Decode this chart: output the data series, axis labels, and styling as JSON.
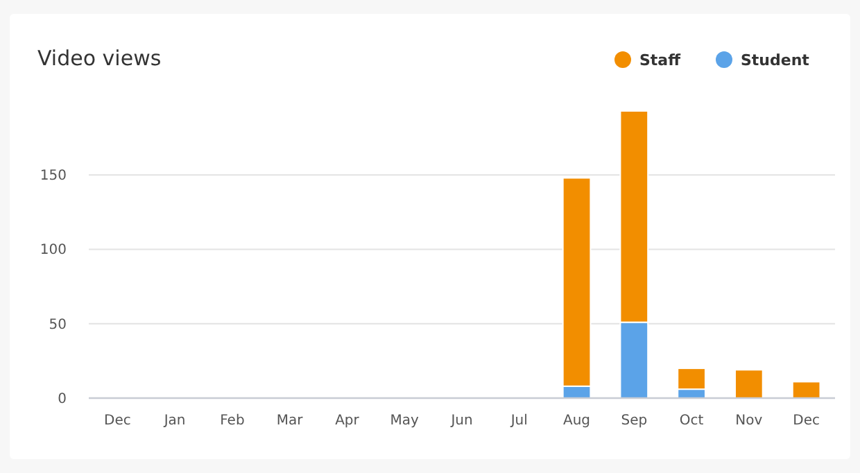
{
  "chart_data": {
    "type": "bar",
    "title": "Video views",
    "categories": [
      "Dec",
      "Jan",
      "Feb",
      "Mar",
      "Apr",
      "May",
      "Jun",
      "Jul",
      "Aug",
      "Sep",
      "Oct",
      "Nov",
      "Dec"
    ],
    "stacked": true,
    "series": [
      {
        "name": "Student",
        "color": "#5ba3e8",
        "values": [
          0,
          0,
          0,
          0,
          0,
          0,
          0,
          0,
          8,
          51,
          6,
          0,
          0
        ]
      },
      {
        "name": "Staff",
        "color": "#f28e00",
        "values": [
          0,
          0,
          0,
          0,
          0,
          0,
          0,
          0,
          140,
          142,
          14,
          19,
          11
        ]
      }
    ],
    "ylim": [
      0,
      193
    ],
    "yticks": [
      0,
      50,
      100,
      150
    ],
    "grid": "y",
    "legend": "top right"
  }
}
